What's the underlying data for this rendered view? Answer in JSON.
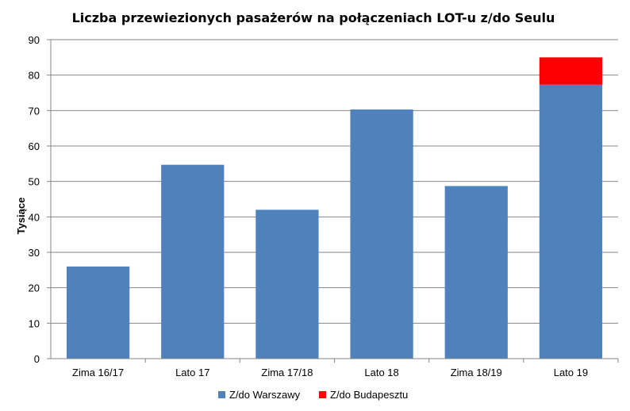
{
  "chart_data": {
    "type": "bar",
    "stacked": true,
    "title": "Liczba przewiezionych pasażerów na połączeniach LOT-u z/do Seulu",
    "xlabel": "",
    "ylabel": "Tysiące",
    "ylim": [
      0,
      90
    ],
    "yticks": [
      0,
      10,
      20,
      30,
      40,
      50,
      60,
      70,
      80,
      90
    ],
    "grid": true,
    "legend_position": "bottom",
    "categories": [
      "Zima 16/17",
      "Lato 17",
      "Zima 17/18",
      "Lato 18",
      "Zima 18/19",
      "Lato 19"
    ],
    "series": [
      {
        "name": "Z/do Warszawy",
        "color": "#4F81BD",
        "values": [
          26,
          54.7,
          42,
          70.3,
          48.7,
          77.3
        ]
      },
      {
        "name": "Z/do Budapesztu",
        "color": "#FF0000",
        "values": [
          0,
          0,
          0,
          0,
          0,
          7.7
        ]
      }
    ]
  }
}
